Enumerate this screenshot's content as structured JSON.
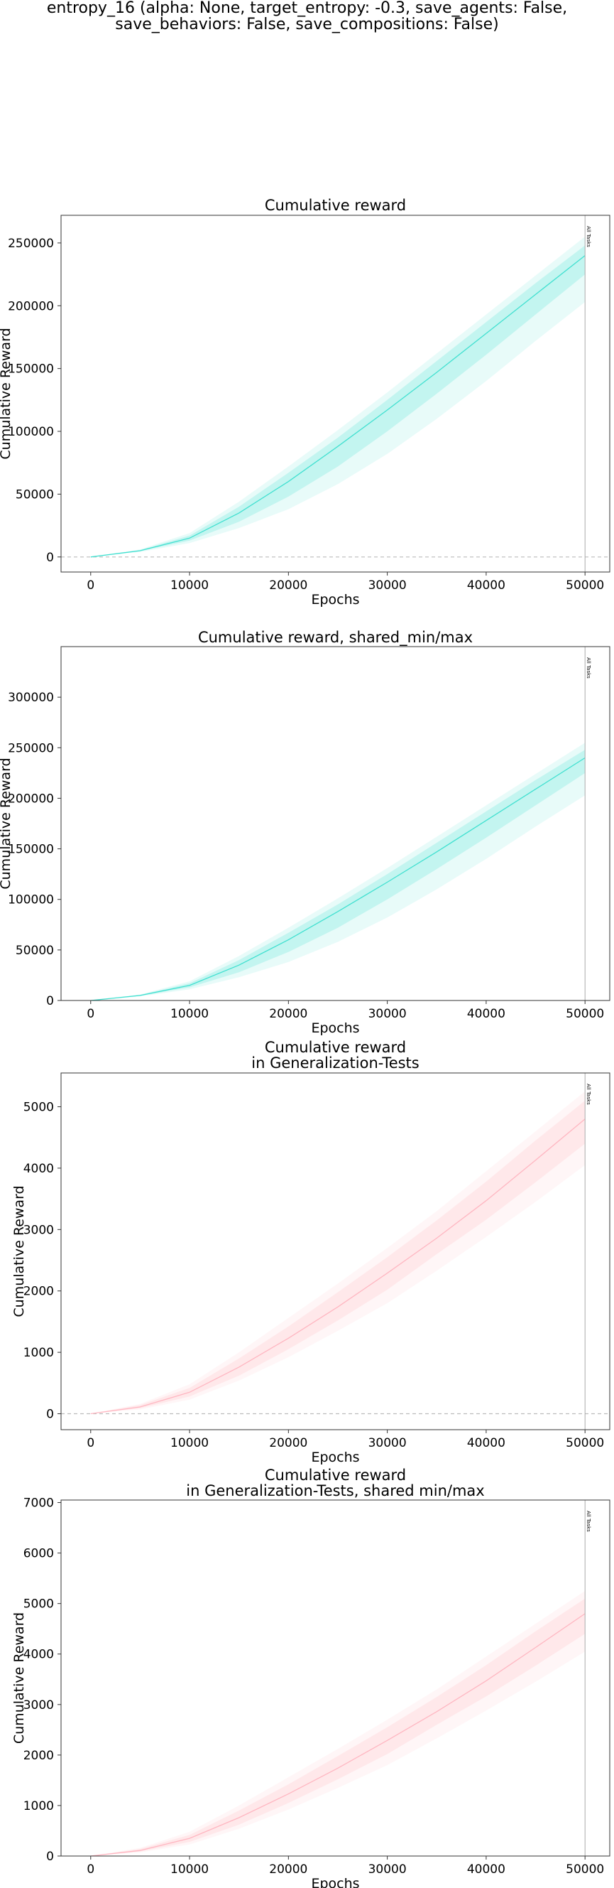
{
  "figure_title": "entropy_16 (alpha: None, target_entropy: -0.3, save_agents: False,\nsave_behaviors: False, save_compositions: False)",
  "chart_data": [
    {
      "type": "line",
      "title": "Cumulative reward",
      "xlabel": "Epochs",
      "ylabel": "Cumulative Reward",
      "xlim": [
        -3000,
        52500
      ],
      "ylim": [
        -12000,
        272000
      ],
      "xticks": [
        0,
        10000,
        20000,
        30000,
        40000,
        50000
      ],
      "yticks": [
        0,
        50000,
        100000,
        150000,
        200000,
        250000
      ],
      "color": "#40e0d0",
      "zero_line": true,
      "vline": {
        "x": 50000,
        "label": "All Tasks"
      },
      "series": [
        {
          "x": [
            0,
            5000,
            10000,
            15000,
            20000,
            25000,
            30000,
            35000,
            40000,
            45000,
            50000
          ],
          "mean": [
            0,
            5000,
            15000,
            35000,
            60000,
            88000,
            117000,
            147000,
            178000,
            209000,
            240000
          ],
          "inner_band": {
            "low": [
              0,
              4500,
              13000,
              28000,
              48000,
              72000,
              100000,
              130000,
              161000,
              193000,
              225000
            ],
            "high": [
              0,
              5500,
              17000,
              40000,
              67000,
              95000,
              125000,
              156000,
              187000,
              218000,
              248000
            ]
          },
          "outer_band": {
            "low": [
              0,
              4000,
              11000,
              23000,
              38000,
              58000,
              82000,
              110000,
              140000,
              172000,
              203000
            ],
            "high": [
              0,
              6000,
              19000,
              44000,
              72000,
              101000,
              131000,
              162000,
              193000,
              224000,
              255000
            ]
          }
        }
      ]
    },
    {
      "type": "line",
      "title": "Cumulative reward, shared_min/max",
      "xlabel": "Epochs",
      "ylabel": "Cumulative Reward",
      "xlim": [
        -3000,
        52500
      ],
      "ylim": [
        0,
        350000
      ],
      "xticks": [
        0,
        10000,
        20000,
        30000,
        40000,
        50000
      ],
      "yticks": [
        0,
        50000,
        100000,
        150000,
        200000,
        250000,
        300000
      ],
      "color": "#40e0d0",
      "zero_line": false,
      "vline": {
        "x": 50000,
        "label": "All Tasks"
      },
      "series": [
        {
          "x": [
            0,
            5000,
            10000,
            15000,
            20000,
            25000,
            30000,
            35000,
            40000,
            45000,
            50000
          ],
          "mean": [
            0,
            5000,
            15000,
            35000,
            60000,
            88000,
            117000,
            147000,
            178000,
            209000,
            240000
          ],
          "inner_band": {
            "low": [
              0,
              4500,
              13000,
              28000,
              48000,
              72000,
              100000,
              130000,
              161000,
              193000,
              225000
            ],
            "high": [
              0,
              5500,
              17000,
              40000,
              67000,
              95000,
              125000,
              156000,
              187000,
              218000,
              248000
            ]
          },
          "outer_band": {
            "low": [
              0,
              4000,
              11000,
              23000,
              38000,
              58000,
              82000,
              110000,
              140000,
              172000,
              203000
            ],
            "high": [
              0,
              6000,
              19000,
              44000,
              72000,
              101000,
              131000,
              162000,
              193000,
              224000,
              255000
            ]
          }
        }
      ]
    },
    {
      "type": "line",
      "title": "Cumulative reward\nin Generalization-Tests",
      "xlabel": "Epochs",
      "ylabel": "Cumulative Reward",
      "xlim": [
        -3000,
        52500
      ],
      "ylim": [
        -260,
        5550
      ],
      "xticks": [
        0,
        10000,
        20000,
        30000,
        40000,
        50000
      ],
      "yticks": [
        0,
        1000,
        2000,
        3000,
        4000,
        5000
      ],
      "color": "#ffb6c1",
      "zero_line": true,
      "vline": {
        "x": 50000,
        "label": "All Tasks"
      },
      "series": [
        {
          "x": [
            0,
            5000,
            10000,
            15000,
            20000,
            25000,
            30000,
            35000,
            40000,
            45000,
            50000
          ],
          "mean": [
            0,
            110,
            350,
            760,
            1230,
            1740,
            2290,
            2860,
            3470,
            4130,
            4800
          ],
          "inner_band": {
            "low": [
              0,
              90,
              280,
              620,
              1050,
              1520,
              2020,
              2600,
              3160,
              3770,
              4400
            ],
            "high": [
              0,
              140,
              420,
              900,
              1420,
              1980,
              2550,
              3150,
              3780,
              4450,
              5100
            ]
          },
          "outer_band": {
            "low": [
              0,
              70,
              230,
              540,
              920,
              1350,
              1800,
              2330,
              2880,
              3450,
              4050
            ],
            "high": [
              0,
              160,
              480,
              1000,
              1560,
              2120,
              2700,
              3300,
              3950,
              4600,
              5250
            ]
          }
        }
      ]
    },
    {
      "type": "line",
      "title": "Cumulative reward\nin Generalization-Tests, shared min/max",
      "xlabel": "Epochs",
      "ylabel": "Cumulative Reward",
      "xlim": [
        -3000,
        52500
      ],
      "ylim": [
        0,
        7050
      ],
      "xticks": [
        0,
        10000,
        20000,
        30000,
        40000,
        50000
      ],
      "yticks": [
        0,
        1000,
        2000,
        3000,
        4000,
        5000,
        6000,
        7000
      ],
      "color": "#ffb6c1",
      "zero_line": false,
      "vline": {
        "x": 50000,
        "label": "All Tasks"
      },
      "series": [
        {
          "x": [
            0,
            5000,
            10000,
            15000,
            20000,
            25000,
            30000,
            35000,
            40000,
            45000,
            50000
          ],
          "mean": [
            0,
            110,
            350,
            760,
            1230,
            1740,
            2290,
            2860,
            3470,
            4130,
            4800
          ],
          "inner_band": {
            "low": [
              0,
              90,
              280,
              620,
              1050,
              1520,
              2020,
              2600,
              3160,
              3770,
              4400
            ],
            "high": [
              0,
              140,
              420,
              900,
              1420,
              1980,
              2550,
              3150,
              3780,
              4450,
              5100
            ]
          },
          "outer_band": {
            "low": [
              0,
              70,
              230,
              540,
              920,
              1350,
              1800,
              2330,
              2880,
              3450,
              4050
            ],
            "high": [
              0,
              160,
              480,
              1000,
              1560,
              2120,
              2700,
              3300,
              3950,
              4600,
              5250
            ]
          }
        }
      ]
    }
  ]
}
